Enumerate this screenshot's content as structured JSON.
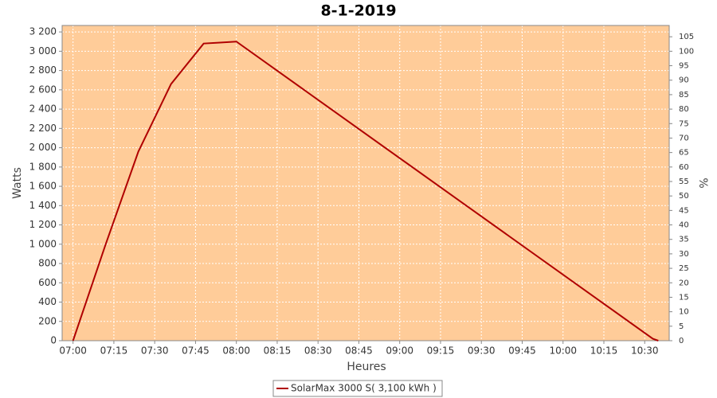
{
  "chart_data": {
    "type": "line",
    "title": "8-1-2019",
    "x_label": "Heures",
    "y_label": "Watts",
    "y2_label": "%",
    "x": [
      "07:00",
      "07:12",
      "07:24",
      "07:36",
      "07:48",
      "07:54",
      "08:00",
      "10:33",
      "10:35"
    ],
    "series": [
      {
        "name": "SolarMax 3000 S( 3,100 kWh )",
        "color": "#b00000",
        "values": [
          0,
          1000,
          1960,
          2660,
          3080,
          3090,
          3100,
          20,
          0
        ]
      }
    ],
    "xlim": [
      "06:56",
      "10:39"
    ],
    "xticks": [
      "07:00",
      "07:15",
      "07:30",
      "07:45",
      "08:00",
      "08:15",
      "08:30",
      "08:45",
      "09:00",
      "09:15",
      "09:30",
      "09:45",
      "10:00",
      "10:15",
      "10:30"
    ],
    "ylim": [
      0,
      3267
    ],
    "yticks": [
      0,
      200,
      400,
      600,
      800,
      {
        "value": 1000,
        "label": "1 000"
      },
      {
        "value": 1200,
        "label": "1 200"
      },
      {
        "value": 1400,
        "label": "1 400"
      },
      {
        "value": 1600,
        "label": "1 600"
      },
      {
        "value": 1800,
        "label": "1 800"
      },
      {
        "value": 2000,
        "label": "2 000"
      },
      {
        "value": 2200,
        "label": "2 200"
      },
      {
        "value": 2400,
        "label": "2 400"
      },
      {
        "value": 2600,
        "label": "2 600"
      },
      {
        "value": 2800,
        "label": "2 800"
      },
      {
        "value": 3000,
        "label": "3 000"
      },
      {
        "value": 3200,
        "label": "3 200"
      }
    ],
    "y2lim": [
      0,
      108.9
    ],
    "y2ticks": [
      0,
      5,
      10,
      15,
      20,
      25,
      30,
      35,
      40,
      45,
      50,
      55,
      60,
      65,
      70,
      75,
      80,
      85,
      90,
      95,
      100,
      105
    ],
    "grid": true,
    "background": "#ffcc99"
  }
}
